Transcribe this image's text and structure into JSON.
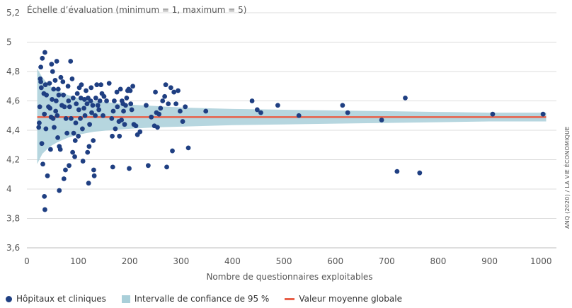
{
  "chart_data": {
    "type": "scatter",
    "title": "Échelle d’évaluation (minimum = 1, maximum = 5)",
    "xlabel": "Nombre de questionnaires exploitables",
    "source": "ANQ (2020) / LA VIE ÉCONOMIQUE",
    "xlim": [
      0,
      1030
    ],
    "ylim": [
      3.6,
      5.2
    ],
    "xticks": [
      0,
      100,
      200,
      300,
      400,
      500,
      600,
      700,
      800,
      900,
      1000
    ],
    "yticks": [
      3.6,
      3.8,
      4.0,
      4.2,
      4.4,
      4.6,
      4.8,
      5.0,
      5.2
    ],
    "ytick_labels": [
      "3,6",
      "3,8",
      "4",
      "4,2",
      "4,4",
      "4,6",
      "4,8",
      "5",
      "5,2"
    ],
    "grid": "horizontal",
    "legend_position": "bottom",
    "colors": {
      "points": "#1f3f82",
      "band": "#a9cfd9",
      "mean": "#e8614a",
      "grid": "#dcdcdc"
    },
    "mean": {
      "name": "Valeur moyenne globale",
      "value": 4.49
    },
    "confidence_band": {
      "name": "Intervalle de confiance de 95 %",
      "x": [
        20,
        30,
        45,
        60,
        80,
        100,
        130,
        160,
        200,
        250,
        300,
        400,
        500,
        600,
        700,
        800,
        900,
        1010
      ],
      "upper": [
        4.82,
        4.76,
        4.7,
        4.67,
        4.64,
        4.62,
        4.6,
        4.59,
        4.575,
        4.565,
        4.555,
        4.545,
        4.54,
        4.535,
        4.53,
        4.525,
        4.52,
        4.52
      ],
      "lower": [
        4.17,
        4.24,
        4.29,
        4.32,
        4.35,
        4.37,
        4.39,
        4.4,
        4.41,
        4.42,
        4.425,
        4.435,
        4.44,
        4.445,
        4.45,
        4.455,
        4.46,
        4.46
      ]
    },
    "series": [
      {
        "name": "Hôpitaux et cliniques",
        "points": [
          [
            24,
            4.45
          ],
          [
            23,
            4.42
          ],
          [
            25,
            4.56
          ],
          [
            26,
            4.75
          ],
          [
            27,
            4.73
          ],
          [
            28,
            4.69
          ],
          [
            27,
            4.83
          ],
          [
            29,
            4.31
          ],
          [
            30,
            4.89
          ],
          [
            31,
            4.17
          ],
          [
            33,
            4.65
          ],
          [
            34,
            4.51
          ],
          [
            34,
            3.95
          ],
          [
            35,
            4.93
          ],
          [
            36,
            4.71
          ],
          [
            37,
            4.41
          ],
          [
            38,
            4.64
          ],
          [
            35,
            3.86
          ],
          [
            40,
            4.09
          ],
          [
            42,
            4.56
          ],
          [
            44,
            4.72
          ],
          [
            45,
            4.55
          ],
          [
            46,
            4.27
          ],
          [
            47,
            4.49
          ],
          [
            48,
            4.85
          ],
          [
            49,
            4.61
          ],
          [
            50,
            4.8
          ],
          [
            51,
            4.48
          ],
          [
            52,
            4.68
          ],
          [
            53,
            4.42
          ],
          [
            55,
            4.74
          ],
          [
            56,
            4.53
          ],
          [
            57,
            4.6
          ],
          [
            58,
            4.87
          ],
          [
            59,
            4.5
          ],
          [
            60,
            4.35
          ],
          [
            61,
            4.68
          ],
          [
            62,
            4.64
          ],
          [
            63,
            4.29
          ],
          [
            63,
            3.99
          ],
          [
            65,
            4.27
          ],
          [
            66,
            4.76
          ],
          [
            68,
            4.57
          ],
          [
            70,
            4.73
          ],
          [
            71,
            4.64
          ],
          [
            72,
            4.07
          ],
          [
            73,
            4.56
          ],
          [
            75,
            4.13
          ],
          [
            76,
            4.48
          ],
          [
            78,
            4.38
          ],
          [
            80,
            4.7
          ],
          [
            81,
            4.6
          ],
          [
            82,
            4.16
          ],
          [
            83,
            4.56
          ],
          [
            85,
            4.87
          ],
          [
            86,
            4.48
          ],
          [
            88,
            4.75
          ],
          [
            89,
            4.25
          ],
          [
            90,
            4.62
          ],
          [
            91,
            4.38
          ],
          [
            93,
            4.22
          ],
          [
            94,
            4.33
          ],
          [
            95,
            4.45
          ],
          [
            96,
            4.58
          ],
          [
            98,
            4.65
          ],
          [
            100,
            4.36
          ],
          [
            101,
            4.54
          ],
          [
            102,
            4.69
          ],
          [
            104,
            4.48
          ],
          [
            105,
            4.62
          ],
          [
            106,
            4.71
          ],
          [
            108,
            4.41
          ],
          [
            109,
            4.19
          ],
          [
            111,
            4.55
          ],
          [
            112,
            4.61
          ],
          [
            113,
            4.5
          ],
          [
            115,
            4.67
          ],
          [
            117,
            4.58
          ],
          [
            118,
            4.25
          ],
          [
            119,
            4.62
          ],
          [
            120,
            4.04
          ],
          [
            121,
            4.29
          ],
          [
            122,
            4.44
          ],
          [
            124,
            4.6
          ],
          [
            125,
            4.69
          ],
          [
            126,
            4.52
          ],
          [
            128,
            4.57
          ],
          [
            129,
            4.33
          ],
          [
            130,
            4.13
          ],
          [
            131,
            4.09
          ],
          [
            133,
            4.5
          ],
          [
            134,
            4.62
          ],
          [
            136,
            4.71
          ],
          [
            138,
            4.57
          ],
          [
            140,
            4.54
          ],
          [
            142,
            4.6
          ],
          [
            144,
            4.71
          ],
          [
            146,
            4.65
          ],
          [
            148,
            4.5
          ],
          [
            150,
            4.63
          ],
          [
            155,
            4.6
          ],
          [
            160,
            4.72
          ],
          [
            165,
            4.48
          ],
          [
            166,
            4.36
          ],
          [
            167,
            4.15
          ],
          [
            168,
            4.53
          ],
          [
            170,
            4.6
          ],
          [
            172,
            4.41
          ],
          [
            175,
            4.66
          ],
          [
            176,
            4.56
          ],
          [
            179,
            4.46
          ],
          [
            180,
            4.36
          ],
          [
            182,
            4.68
          ],
          [
            184,
            4.47
          ],
          [
            185,
            4.6
          ],
          [
            187,
            4.58
          ],
          [
            188,
            4.53
          ],
          [
            190,
            4.44
          ],
          [
            192,
            4.57
          ],
          [
            194,
            4.62
          ],
          [
            196,
            4.67
          ],
          [
            198,
            4.68
          ],
          [
            199,
            4.14
          ],
          [
            201,
            4.67
          ],
          [
            202,
            4.58
          ],
          [
            204,
            4.54
          ],
          [
            206,
            4.7
          ],
          [
            208,
            4.44
          ],
          [
            212,
            4.43
          ],
          [
            215,
            4.37
          ],
          [
            220,
            4.39
          ],
          [
            232,
            4.57
          ],
          [
            236,
            4.16
          ],
          [
            242,
            4.49
          ],
          [
            248,
            4.43
          ],
          [
            250,
            4.66
          ],
          [
            252,
            4.52
          ],
          [
            254,
            4.42
          ],
          [
            257,
            4.51
          ],
          [
            260,
            4.55
          ],
          [
            264,
            4.6
          ],
          [
            268,
            4.63
          ],
          [
            270,
            4.71
          ],
          [
            272,
            4.15
          ],
          [
            275,
            4.58
          ],
          [
            280,
            4.69
          ],
          [
            283,
            4.26
          ],
          [
            286,
            4.66
          ],
          [
            290,
            4.58
          ],
          [
            294,
            4.67
          ],
          [
            298,
            4.53
          ],
          [
            303,
            4.46
          ],
          [
            308,
            4.56
          ],
          [
            314,
            4.28
          ],
          [
            348,
            4.53
          ],
          [
            438,
            4.6
          ],
          [
            448,
            4.54
          ],
          [
            455,
            4.52
          ],
          [
            488,
            4.57
          ],
          [
            529,
            4.5
          ],
          [
            614,
            4.57
          ],
          [
            624,
            4.52
          ],
          [
            690,
            4.47
          ],
          [
            720,
            4.12
          ],
          [
            736,
            4.62
          ],
          [
            764,
            4.11
          ],
          [
            906,
            4.51
          ],
          [
            1004,
            4.51
          ]
        ]
      }
    ]
  }
}
